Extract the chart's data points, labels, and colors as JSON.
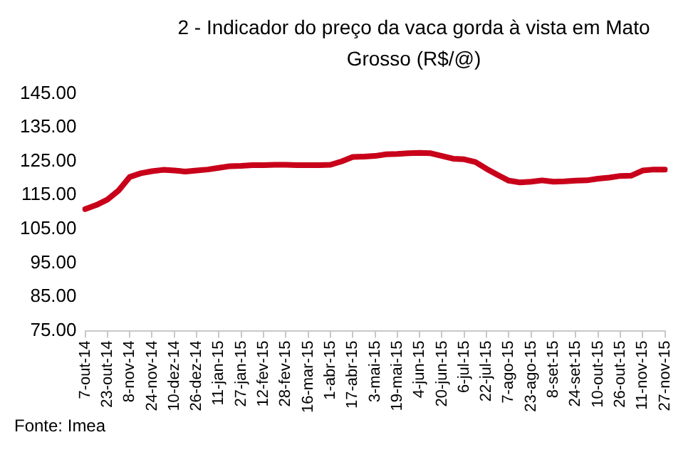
{
  "chart_data": {
    "type": "line",
    "title": "2 - Indicador do preço da vaca gorda à vista em Mato Grosso (R$/@)",
    "categories": [
      "7-out-14",
      null,
      "23-out-14",
      null,
      "8-nov-14",
      null,
      "24-nov-14",
      null,
      "10-dez-14",
      null,
      "26-dez-14",
      null,
      "11-jan-15",
      null,
      "27-jan-15",
      null,
      "12-fev-15",
      null,
      "28-fev-15",
      null,
      "16-mar-15",
      null,
      "1-abr-15",
      null,
      "17-abr-15",
      null,
      "3-mai-15",
      null,
      "19-mai-15",
      null,
      "4-jun-15",
      null,
      "20-jun-15",
      null,
      "6-jul-15",
      null,
      "22-jul-15",
      null,
      "7-ago-15",
      null,
      "23-ago-15",
      null,
      "8-set-15",
      null,
      "24-set-15",
      null,
      "10-out-15",
      null,
      "26-out-15",
      null,
      "11-nov-15",
      null,
      "27-nov-15"
    ],
    "series": [
      {
        "color": "#c8001a",
        "values": [
          110.9,
          112.1,
          113.7,
          116.4,
          120.4,
          121.5,
          122.1,
          122.5,
          122.3,
          122.0,
          122.3,
          122.6,
          123.1,
          123.6,
          123.7,
          123.9,
          123.9,
          124.0,
          124.0,
          123.9,
          123.9,
          123.9,
          124.0,
          125.0,
          126.3,
          126.4,
          126.6,
          127.1,
          127.2,
          127.4,
          127.5,
          127.4,
          126.6,
          125.8,
          125.6,
          124.8,
          122.8,
          121.0,
          119.3,
          118.8,
          119.0,
          119.4,
          119.0,
          119.1,
          119.3,
          119.4,
          119.9,
          120.2,
          120.7,
          120.8,
          122.3,
          122.6,
          122.6
        ]
      }
    ],
    "ylim": [
      75,
      145
    ],
    "yticks": [
      {
        "value": 75,
        "label": "75.00"
      },
      {
        "value": 85,
        "label": "85.00"
      },
      {
        "value": 95,
        "label": "95.00"
      },
      {
        "value": 105,
        "label": "105.00"
      },
      {
        "value": 115,
        "label": "115.00"
      },
      {
        "value": 125,
        "label": "125.00"
      },
      {
        "value": 135,
        "label": "135.00"
      },
      {
        "value": 145,
        "label": "145.00"
      }
    ],
    "grid": false,
    "legend": false,
    "marker": "none",
    "line_style": "solid",
    "annotations": [
      "Fonte: Imea"
    ]
  }
}
